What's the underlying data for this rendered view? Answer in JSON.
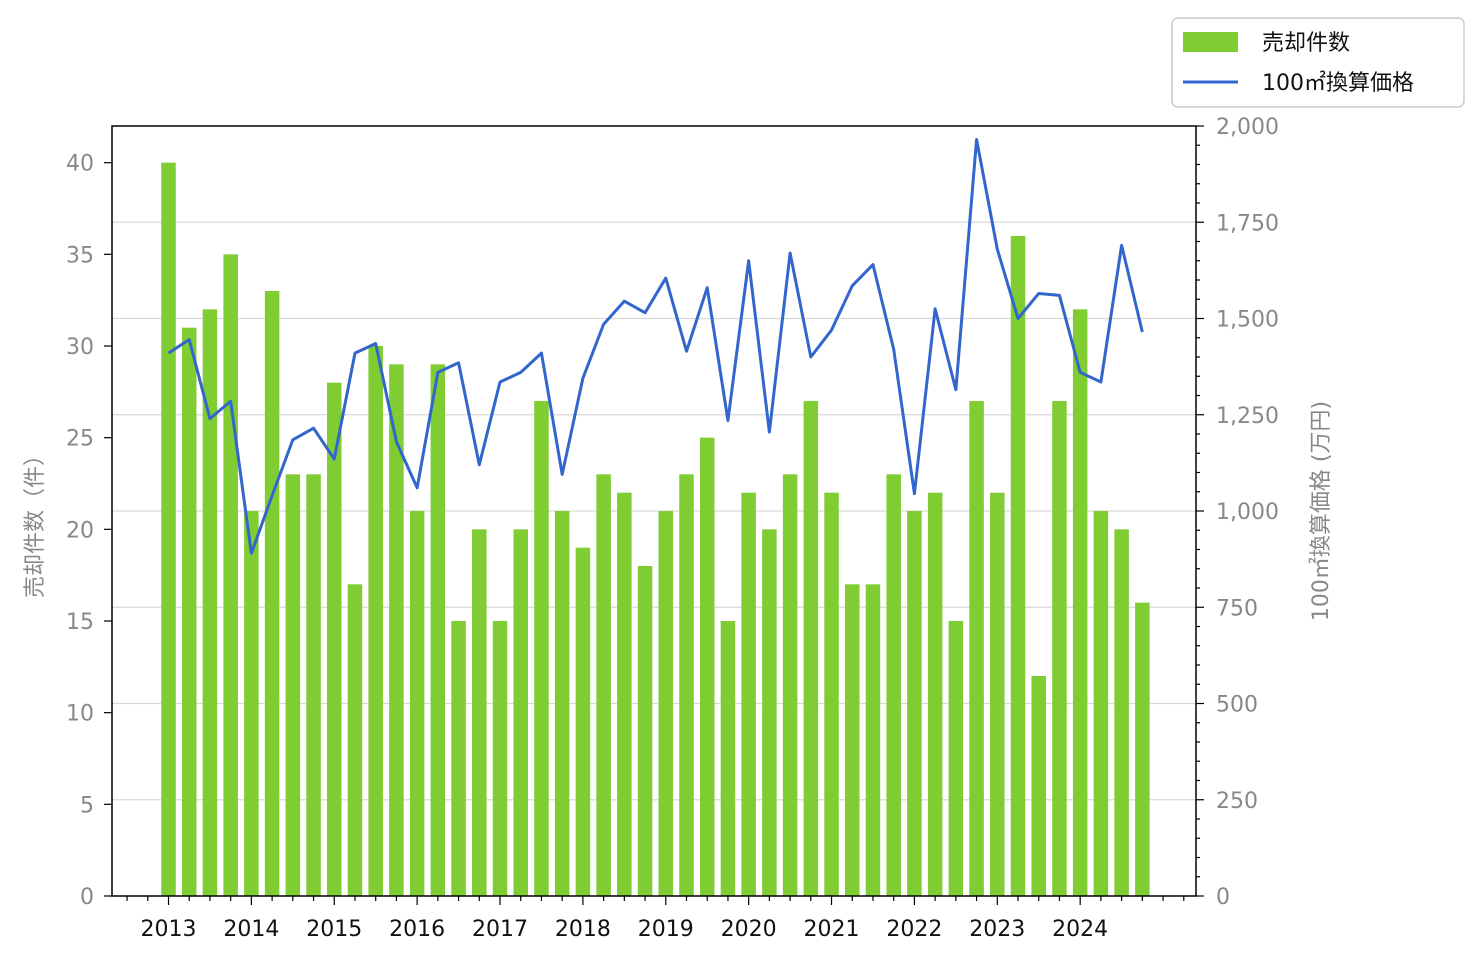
{
  "chart_data": {
    "type": "bar",
    "series": [
      {
        "name": "売却件数",
        "type": "bar",
        "axis": "left",
        "color": "#7fcc33",
        "values": [
          40,
          31,
          32,
          35,
          21,
          33,
          23,
          23,
          28,
          17,
          30,
          29,
          21,
          29,
          15,
          20,
          15,
          20,
          27,
          21,
          19,
          23,
          22,
          18,
          21,
          23,
          25,
          15,
          22,
          20,
          23,
          27,
          22,
          17,
          17,
          23,
          21,
          22,
          15,
          27,
          22,
          36,
          12,
          27,
          32,
          21,
          20,
          16
        ]
      },
      {
        "name": "100㎡換算価格",
        "type": "line",
        "axis": "right",
        "color": "#3366cc",
        "values": [
          1410,
          1445,
          1240,
          1285,
          890,
          1040,
          1185,
          1215,
          1135,
          1410,
          1435,
          1180,
          1060,
          1360,
          1385,
          1120,
          1335,
          1360,
          1410,
          1095,
          1345,
          1485,
          1545,
          1515,
          1605,
          1415,
          1580,
          1235,
          1650,
          1205,
          1670,
          1400,
          1470,
          1585,
          1640,
          1420,
          1045,
          1525,
          1315,
          1965,
          1680,
          1500,
          1565,
          1560,
          1360,
          1335,
          1690,
          1465
        ]
      }
    ],
    "x_tick_labels": [
      "2013",
      "2014",
      "2015",
      "2016",
      "2017",
      "2018",
      "2019",
      "2020",
      "2021",
      "2022",
      "2023",
      "2024"
    ],
    "periods_per_year": 4,
    "y_left": {
      "label": "売却件数（件）",
      "ticks": [
        "0",
        "5",
        "10",
        "15",
        "20",
        "25",
        "30",
        "35",
        "40"
      ],
      "ylim": [
        0,
        42
      ]
    },
    "y_right": {
      "label": "100㎡換算価格 (万円)",
      "ticks": [
        "0",
        "250",
        "500",
        "750",
        "1,000",
        "1,250",
        "1,500",
        "1,750",
        "2,000"
      ],
      "ylim": [
        0,
        2000
      ]
    },
    "legend": {
      "placement": "top-right",
      "entries": [
        "売却件数",
        "100㎡換算価格"
      ]
    },
    "grid": "horizontal (right axis)",
    "colors": {
      "bar": "#7fcc33",
      "line": "#3366cc",
      "grid": "#d9d9d9",
      "tick_text": "#888888"
    }
  }
}
